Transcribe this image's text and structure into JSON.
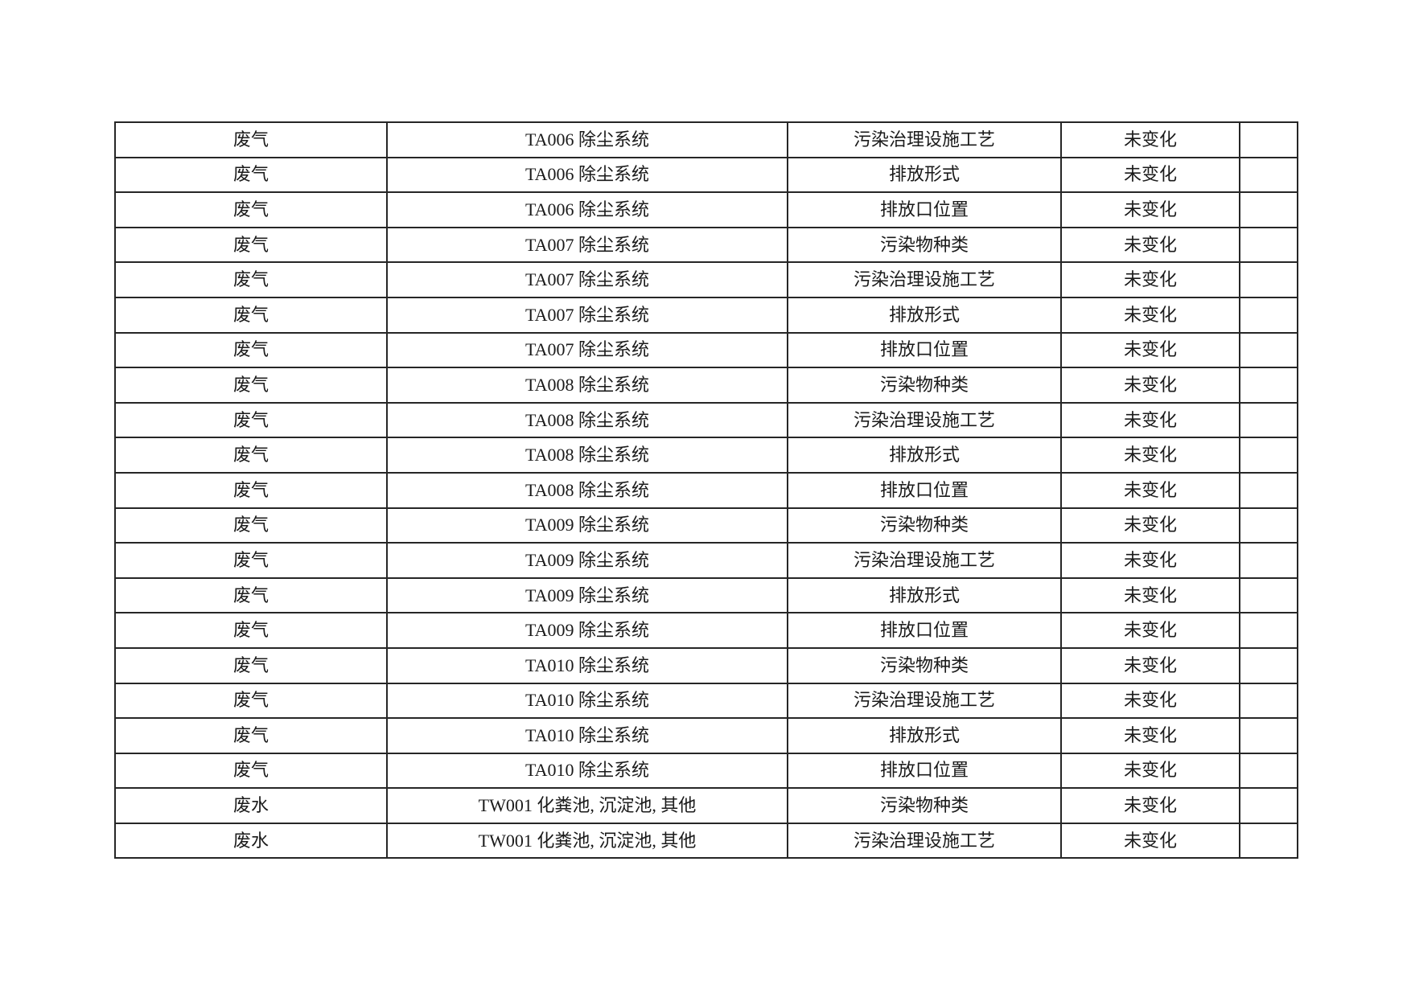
{
  "page": {
    "background_color": "#ffffff",
    "text_color": "#1a1a1a",
    "border_color": "#262626"
  },
  "table": {
    "column_keys": [
      "category",
      "facility",
      "item",
      "status",
      "note"
    ],
    "rows": [
      {
        "category": "废气",
        "facility": "TA006 除尘系统",
        "item": "污染治理设施工艺",
        "status": "未变化",
        "note": ""
      },
      {
        "category": "废气",
        "facility": "TA006 除尘系统",
        "item": "排放形式",
        "status": "未变化",
        "note": ""
      },
      {
        "category": "废气",
        "facility": "TA006 除尘系统",
        "item": "排放口位置",
        "status": "未变化",
        "note": ""
      },
      {
        "category": "废气",
        "facility": "TA007 除尘系统",
        "item": "污染物种类",
        "status": "未变化",
        "note": ""
      },
      {
        "category": "废气",
        "facility": "TA007 除尘系统",
        "item": "污染治理设施工艺",
        "status": "未变化",
        "note": ""
      },
      {
        "category": "废气",
        "facility": "TA007 除尘系统",
        "item": "排放形式",
        "status": "未变化",
        "note": ""
      },
      {
        "category": "废气",
        "facility": "TA007 除尘系统",
        "item": "排放口位置",
        "status": "未变化",
        "note": ""
      },
      {
        "category": "废气",
        "facility": "TA008 除尘系统",
        "item": "污染物种类",
        "status": "未变化",
        "note": ""
      },
      {
        "category": "废气",
        "facility": "TA008 除尘系统",
        "item": "污染治理设施工艺",
        "status": "未变化",
        "note": ""
      },
      {
        "category": "废气",
        "facility": "TA008 除尘系统",
        "item": "排放形式",
        "status": "未变化",
        "note": ""
      },
      {
        "category": "废气",
        "facility": "TA008 除尘系统",
        "item": "排放口位置",
        "status": "未变化",
        "note": ""
      },
      {
        "category": "废气",
        "facility": "TA009 除尘系统",
        "item": "污染物种类",
        "status": "未变化",
        "note": ""
      },
      {
        "category": "废气",
        "facility": "TA009 除尘系统",
        "item": "污染治理设施工艺",
        "status": "未变化",
        "note": ""
      },
      {
        "category": "废气",
        "facility": "TA009 除尘系统",
        "item": "排放形式",
        "status": "未变化",
        "note": ""
      },
      {
        "category": "废气",
        "facility": "TA009 除尘系统",
        "item": "排放口位置",
        "status": "未变化",
        "note": ""
      },
      {
        "category": "废气",
        "facility": "TA010 除尘系统",
        "item": "污染物种类",
        "status": "未变化",
        "note": ""
      },
      {
        "category": "废气",
        "facility": "TA010 除尘系统",
        "item": "污染治理设施工艺",
        "status": "未变化",
        "note": ""
      },
      {
        "category": "废气",
        "facility": "TA010 除尘系统",
        "item": "排放形式",
        "status": "未变化",
        "note": ""
      },
      {
        "category": "废气",
        "facility": "TA010 除尘系统",
        "item": "排放口位置",
        "status": "未变化",
        "note": ""
      },
      {
        "category": "废水",
        "facility": "TW001 化粪池, 沉淀池, 其他",
        "item": "污染物种类",
        "status": "未变化",
        "note": ""
      },
      {
        "category": "废水",
        "facility": "TW001 化粪池, 沉淀池, 其他",
        "item": "污染治理设施工艺",
        "status": "未变化",
        "note": ""
      }
    ]
  }
}
